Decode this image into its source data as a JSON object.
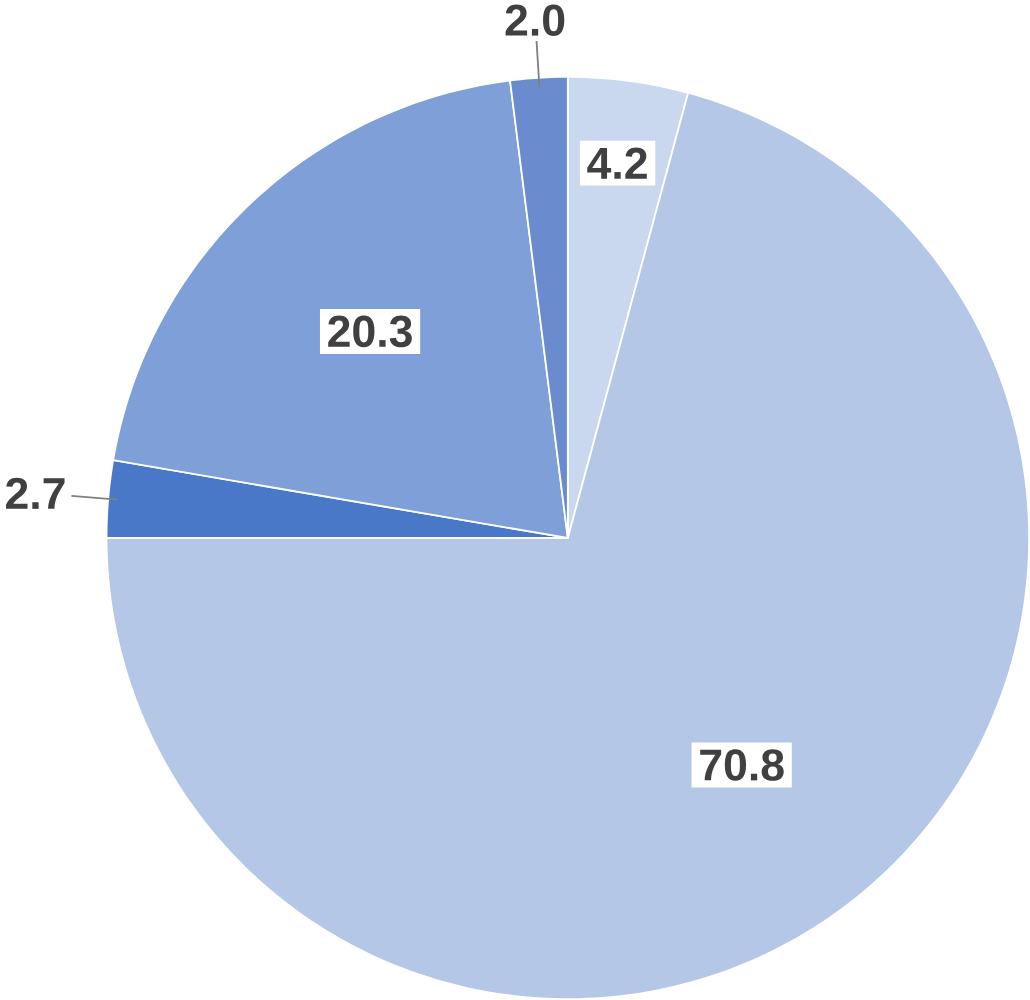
{
  "chart_data": {
    "type": "pie",
    "categories": [
      null,
      null,
      null,
      null,
      null
    ],
    "values": [
      4.2,
      70.8,
      2.7,
      20.3,
      2.0
    ],
    "colors": [
      "#c9d7ef",
      "#b4c7e7",
      "#4a78c8",
      "#7f9fd8",
      "#6a8cce"
    ],
    "value_labels": [
      "4.2",
      "70.8",
      "2.7",
      "20.3",
      "2.0"
    ]
  }
}
